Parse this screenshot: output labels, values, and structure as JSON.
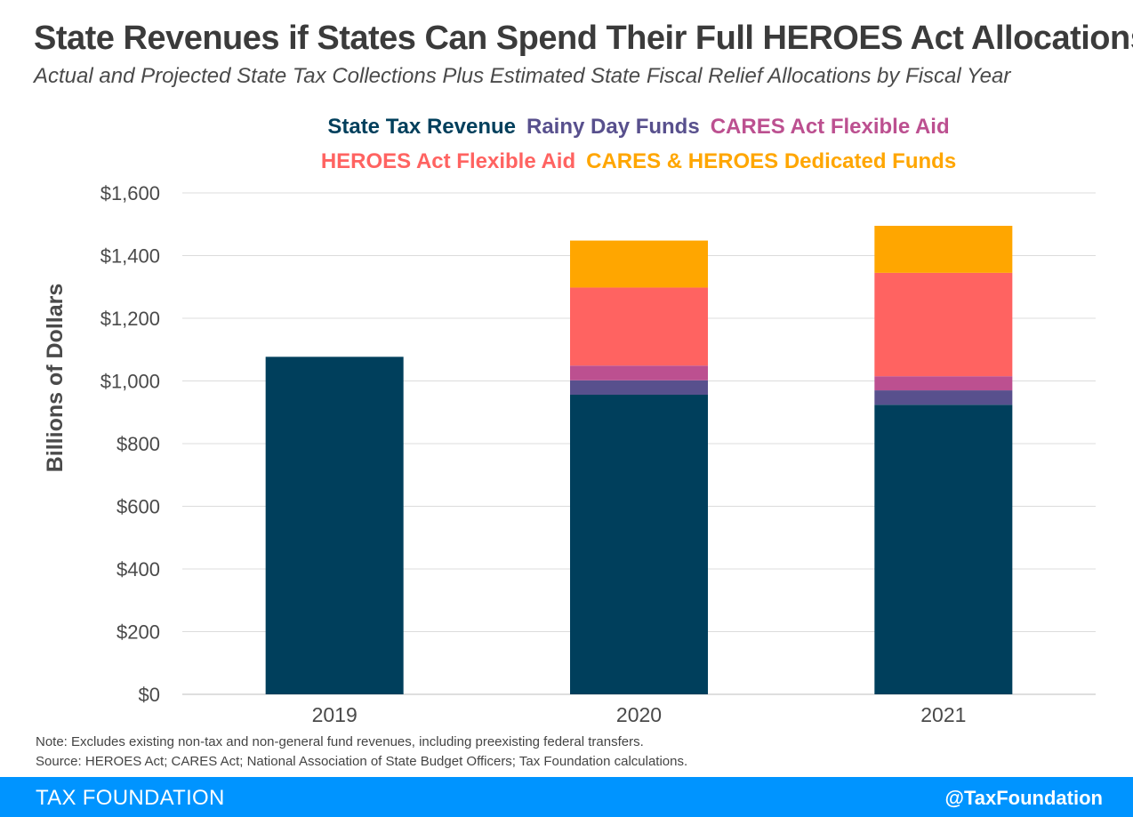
{
  "header": {
    "title": "State Revenues if States Can Spend Their Full HEROES Act Allocations",
    "subtitle": "Actual and Projected State Tax Collections Plus Estimated State Fiscal Relief Allocations by Fiscal Year"
  },
  "chart_data": {
    "type": "bar",
    "stacked": true,
    "categories": [
      "2019",
      "2020",
      "2021"
    ],
    "series": [
      {
        "name": "State Tax Revenue",
        "color": "#003f5c",
        "values": [
          1077,
          956,
          924
        ]
      },
      {
        "name": "Rainy Day Funds",
        "color": "#58508d",
        "values": [
          0,
          46,
          46
        ]
      },
      {
        "name": "CARES Act Flexible Aid",
        "color": "#bc5090",
        "values": [
          0,
          47,
          45
        ]
      },
      {
        "name": "HEROES Act Flexible Aid",
        "color": "#ff6361",
        "values": [
          0,
          249,
          330
        ]
      },
      {
        "name": "CARES & HEROES Dedicated Funds",
        "color": "#ffa600",
        "values": [
          0,
          150,
          150
        ]
      }
    ],
    "ylabel": "Billions of Dollars",
    "ylim": [
      0,
      1600
    ],
    "yticks": [
      0,
      200,
      400,
      600,
      800,
      1000,
      1200,
      1400,
      1600
    ],
    "ytick_labels": [
      "$0",
      "$200",
      "$400",
      "$600",
      "$800",
      "$1,000",
      "$1,200",
      "$1,400",
      "$1,600"
    ],
    "grid": true,
    "legend": "top"
  },
  "notes": {
    "note": "Note: Excludes existing non-tax and non-general fund revenues, including preexisting federal transfers.",
    "source": "Source: HEROES Act; CARES Act; National Association of State Budget Officers; Tax Foundation calculations."
  },
  "footer": {
    "brand": "TAX FOUNDATION",
    "handle": "@TaxFoundation",
    "color": "#0094ff"
  }
}
